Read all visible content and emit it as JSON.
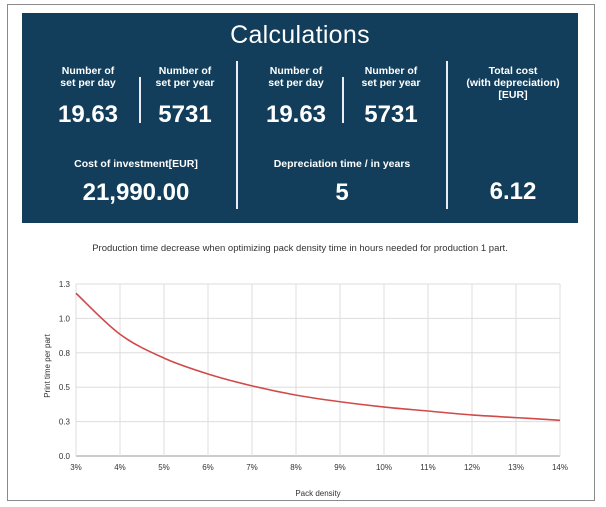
{
  "panel": {
    "title": "Calculations",
    "set_per_day_label_1": "Number of\nset per day",
    "set_per_day_value_1": "19.63",
    "set_per_year_label_1": "Number of\nset per year",
    "set_per_year_value_1": "5731",
    "set_per_day_label_2": "Number of\nset per day",
    "set_per_day_value_2": "19.63",
    "set_per_year_label_2": "Number of\nset per year",
    "set_per_year_value_2": "5731",
    "total_cost_label": "Total cost\n(with depreciation)\n[EUR]",
    "total_cost_value": "6.12",
    "investment_label": "Cost of investment[EUR]",
    "investment_value": "21,990.00",
    "depreciation_label": "Depreciation time / in years",
    "depreciation_value": "5"
  },
  "chart_data": {
    "type": "line",
    "title": "Production time decrease when optimizing pack density time in hours needed for production 1 part.",
    "xlabel": "Pack density",
    "ylabel": "Print time per part",
    "categories": [
      "3%",
      "4%",
      "5%",
      "6%",
      "7%",
      "8%",
      "9%",
      "10%",
      "11%",
      "12%",
      "13%",
      "14%"
    ],
    "y_ticks": [
      "0.0",
      "0.3",
      "0.5",
      "0.8",
      "1.0",
      "1.3"
    ],
    "ylim": [
      0,
      1.3
    ],
    "series": [
      {
        "values": [
          1.23,
          0.92,
          0.74,
          0.62,
          0.53,
          0.46,
          0.41,
          0.37,
          0.34,
          0.31,
          0.29,
          0.27
        ]
      }
    ],
    "line_color": "#d04a4a",
    "grid": true
  }
}
